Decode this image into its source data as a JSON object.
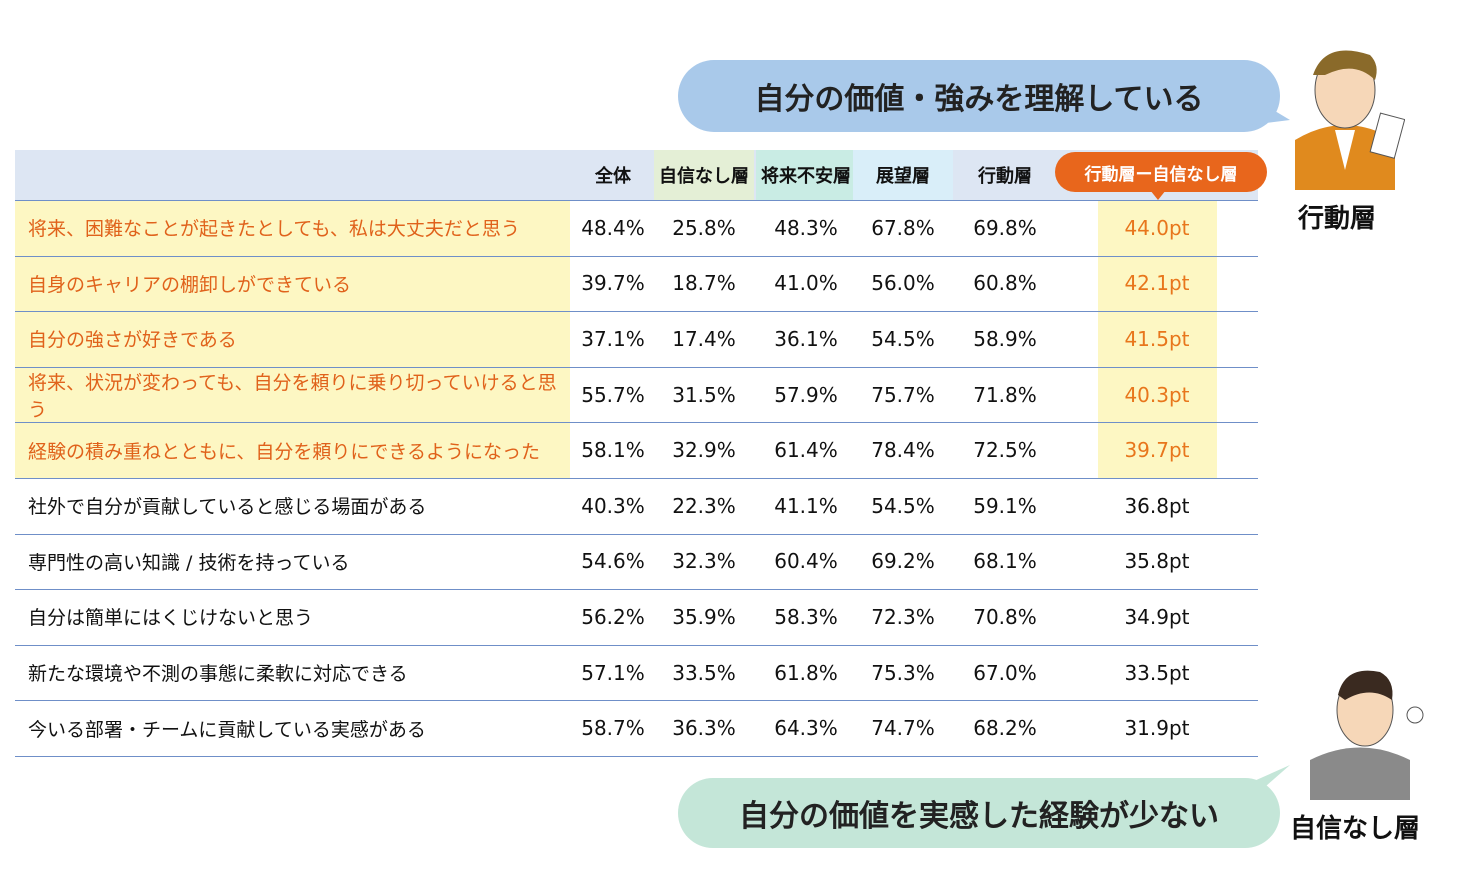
{
  "top_bubble": "自分の価値・強みを理解している",
  "bottom_bubble": "自分の価値を実感した経験が少ない",
  "persona_top": "行動層",
  "persona_bottom": "自信なし層",
  "table": {
    "columns": [
      "全体",
      "自信なし層",
      "将来不安層",
      "展望層",
      "行動層",
      "行動層ー自信なし層"
    ],
    "rows": [
      {
        "label": "将来、困難なことが起きたとしても、私は大丈夫だと思う",
        "cells": [
          "48.4%",
          "25.8%",
          "48.3%",
          "67.8%",
          "69.8%",
          "44.0pt"
        ]
      },
      {
        "label": "自身のキャリアの棚卸しができている",
        "cells": [
          "39.7%",
          "18.7%",
          "41.0%",
          "56.0%",
          "60.8%",
          "42.1pt"
        ]
      },
      {
        "label": "自分の強さが好きである",
        "cells": [
          "37.1%",
          "17.4%",
          "36.1%",
          "54.5%",
          "58.9%",
          "41.5pt"
        ]
      },
      {
        "label": "将来、状況が変わっても、自分を頼りに乗り切っていけると思う",
        "cells": [
          "55.7%",
          "31.5%",
          "57.9%",
          "75.7%",
          "71.8%",
          "40.3pt"
        ]
      },
      {
        "label": "経験の積み重ねとともに、自分を頼りにできるようになった",
        "cells": [
          "58.1%",
          "32.9%",
          "61.4%",
          "78.4%",
          "72.5%",
          "39.7pt"
        ]
      },
      {
        "label": "社外で自分が貢献していると感じる場面がある",
        "cells": [
          "40.3%",
          "22.3%",
          "41.1%",
          "54.5%",
          "59.1%",
          "36.8pt"
        ]
      },
      {
        "label": "専門性の高い知識 / 技術を持っている",
        "cells": [
          "54.6%",
          "32.3%",
          "60.4%",
          "69.2%",
          "68.1%",
          "35.8pt"
        ]
      },
      {
        "label": "自分は簡単にはくじけないと思う",
        "cells": [
          "56.2%",
          "35.9%",
          "58.3%",
          "72.3%",
          "70.8%",
          "34.9pt"
        ]
      },
      {
        "label": "新たな環境や不測の事態に柔軟に対応できる",
        "cells": [
          "57.1%",
          "33.5%",
          "61.8%",
          "75.3%",
          "67.0%",
          "33.5pt"
        ]
      },
      {
        "label": "今いる部署・チームに貢献している実感がある",
        "cells": [
          "58.7%",
          "36.3%",
          "64.3%",
          "74.7%",
          "68.2%",
          "31.9pt"
        ]
      }
    ],
    "highlighted_rows": 5
  }
}
